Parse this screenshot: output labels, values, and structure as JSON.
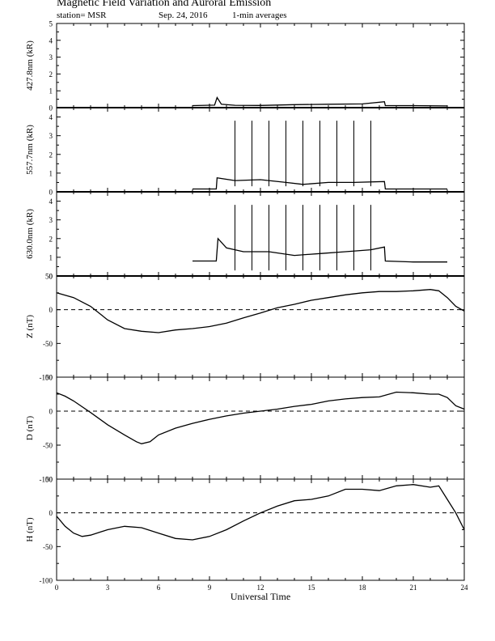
{
  "header": {
    "title": "Magnetic Field Variation and Auroral Emission",
    "station": "station= MSR",
    "date": "Sep. 24, 2016",
    "averaging": "1-min averages"
  },
  "chart_data": [
    {
      "type": "line",
      "ylabel": "427.8nm (kR)",
      "ylim": [
        0,
        5
      ],
      "yticks": [
        0,
        1,
        2,
        3,
        4,
        5
      ],
      "zero_line": "solid",
      "series": [
        {
          "x": [
            8,
            9.3,
            9.45,
            9.7,
            10.5,
            12,
            14,
            16,
            18,
            19.3,
            19.35,
            21,
            23
          ],
          "y": [
            0.12,
            0.15,
            0.6,
            0.2,
            0.14,
            0.13,
            0.18,
            0.2,
            0.22,
            0.35,
            0.12,
            0.12,
            0.1
          ]
        }
      ]
    },
    {
      "type": "line",
      "ylabel": "557.7nm (kR)",
      "ylim": [
        0,
        4.5
      ],
      "yticks": [
        0,
        1,
        2,
        3,
        4
      ],
      "zero_line": "solid",
      "spikes": {
        "x": [
          10.5,
          11.5,
          12.5,
          13.5,
          14.5,
          15.5,
          16.5,
          17.5,
          18.5
        ],
        "y": 3.8
      },
      "series": [
        {
          "x": [
            8,
            9.4,
            9.45,
            10.5,
            12,
            13.5,
            14.5,
            16,
            17.5,
            19.3,
            19.35,
            21,
            23
          ],
          "y": [
            0.15,
            0.15,
            0.75,
            0.6,
            0.65,
            0.5,
            0.4,
            0.5,
            0.5,
            0.55,
            0.15,
            0.15,
            0.15
          ]
        }
      ]
    },
    {
      "type": "line",
      "ylabel": "630.0nm (kR)",
      "ylim": [
        0,
        4.5
      ],
      "yticks": [
        0,
        1,
        2,
        3,
        4
      ],
      "zero_line": "solid",
      "spikes": {
        "x": [
          10.5,
          11.5,
          12.5,
          13.5,
          14.5,
          15.5,
          16.5,
          17.5,
          18.5
        ],
        "y": 3.8
      },
      "series": [
        {
          "x": [
            8,
            9.4,
            9.5,
            10,
            11,
            12.5,
            14,
            15.5,
            17,
            18.5,
            19.3,
            19.35,
            21,
            23
          ],
          "y": [
            0.8,
            0.8,
            2.0,
            1.5,
            1.3,
            1.3,
            1.1,
            1.2,
            1.3,
            1.4,
            1.55,
            0.8,
            0.75,
            0.75
          ]
        }
      ]
    },
    {
      "type": "line",
      "ylabel": "Z (nT)",
      "ylim": [
        -100,
        50
      ],
      "yticks": [
        -100,
        -50,
        0,
        50
      ],
      "zero_line": "dashed",
      "series": [
        {
          "x": [
            0,
            1,
            2,
            3,
            4,
            5,
            6,
            7,
            8,
            9,
            10,
            11,
            12,
            13,
            14,
            15,
            16,
            17,
            18,
            19,
            20,
            21,
            22,
            22.5,
            23,
            23.5,
            24
          ],
          "y": [
            25,
            18,
            5,
            -15,
            -28,
            -32,
            -34,
            -30,
            -28,
            -25,
            -20,
            -12,
            -5,
            3,
            8,
            14,
            18,
            22,
            25,
            27,
            27,
            28,
            30,
            28,
            18,
            5,
            -2
          ]
        }
      ]
    },
    {
      "type": "line",
      "ylabel": "D (nT)",
      "ylim": [
        -100,
        50
      ],
      "yticks": [
        -100,
        -50,
        0,
        50
      ],
      "zero_line": "dashed",
      "series": [
        {
          "x": [
            0,
            0.5,
            1,
            2,
            3,
            4,
            4.7,
            5,
            5.5,
            6,
            7,
            8,
            9,
            10,
            11,
            12,
            13,
            14,
            15,
            16,
            17,
            18,
            19,
            20,
            21,
            22,
            22.5,
            23,
            23.5,
            24
          ],
          "y": [
            27,
            22,
            15,
            -2,
            -20,
            -35,
            -45,
            -48,
            -45,
            -35,
            -25,
            -18,
            -12,
            -7,
            -3,
            0,
            3,
            7,
            10,
            15,
            18,
            20,
            21,
            28,
            27,
            25,
            25,
            20,
            8,
            3
          ]
        }
      ]
    },
    {
      "type": "line",
      "ylabel": "H (nT)",
      "ylim": [
        -100,
        50
      ],
      "yticks": [
        -100,
        -50,
        0,
        50
      ],
      "zero_line": "dashed",
      "series": [
        {
          "x": [
            0,
            0.5,
            1,
            1.5,
            2,
            3,
            4,
            5,
            6,
            7,
            8,
            9,
            10,
            11,
            12,
            13,
            14,
            15,
            16,
            17,
            18,
            19,
            20,
            21,
            22,
            22.5,
            23,
            23.5,
            24
          ],
          "y": [
            -5,
            -20,
            -30,
            -35,
            -33,
            -25,
            -20,
            -22,
            -30,
            -38,
            -40,
            -35,
            -25,
            -12,
            0,
            10,
            18,
            20,
            25,
            35,
            35,
            33,
            40,
            42,
            38,
            40,
            20,
            0,
            -25
          ]
        }
      ]
    }
  ],
  "x_axis": {
    "label": "Universal Time",
    "xlim": [
      0,
      24
    ],
    "ticks": [
      0,
      3,
      6,
      9,
      12,
      15,
      18,
      21,
      24
    ]
  }
}
